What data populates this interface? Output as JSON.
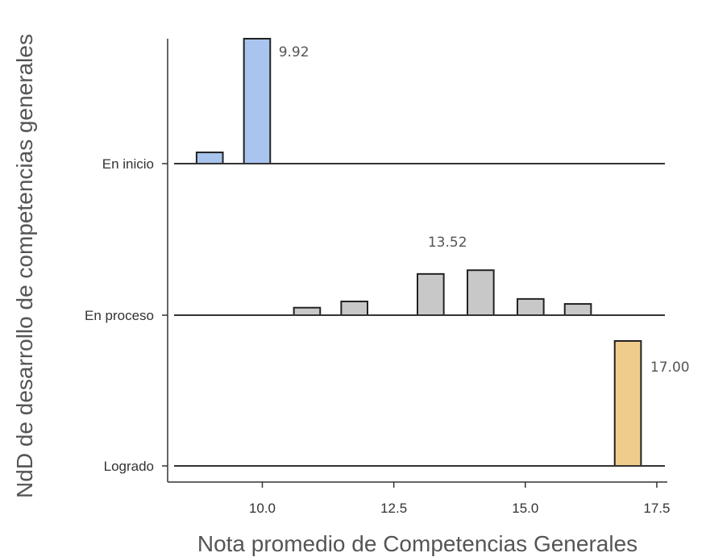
{
  "chart_data": {
    "type": "bar",
    "xlabel": "Nota promedio de Competencias Generales",
    "ylabel": "NdD de desarrollo de competencias generales",
    "xlim": [
      8.2,
      17.7
    ],
    "x_ticks": [
      "10.0",
      "12.5",
      "15.0",
      "17.5"
    ],
    "x_tick_values": [
      10.0,
      12.5,
      15.0,
      17.5
    ],
    "bin_width": 0.5,
    "categories": [
      "En inicio",
      "En proceso",
      "Logrado"
    ],
    "series": [
      {
        "category": "En inicio",
        "color": "#a9c4ef",
        "bins": [
          {
            "x": 9.0,
            "height": 0.09
          },
          {
            "x": 9.9,
            "height": 1.0
          }
        ],
        "annotation": "9.92",
        "annotation_x": 10.6
      },
      {
        "category": "En proceso",
        "color": "#c8c8c8",
        "bins": [
          {
            "x": 10.85,
            "height": 0.06
          },
          {
            "x": 11.75,
            "height": 0.11
          },
          {
            "x": 13.2,
            "height": 0.33
          },
          {
            "x": 14.15,
            "height": 0.36
          },
          {
            "x": 15.1,
            "height": 0.13
          },
          {
            "x": 16.0,
            "height": 0.09
          }
        ],
        "annotation": "13.52",
        "annotation_x": 13.52
      },
      {
        "category": "Logrado",
        "color": "#f0cc8c",
        "bins": [
          {
            "x": 16.95,
            "height": 1.0
          }
        ],
        "annotation": "17.00",
        "annotation_x": 17.75
      }
    ]
  }
}
